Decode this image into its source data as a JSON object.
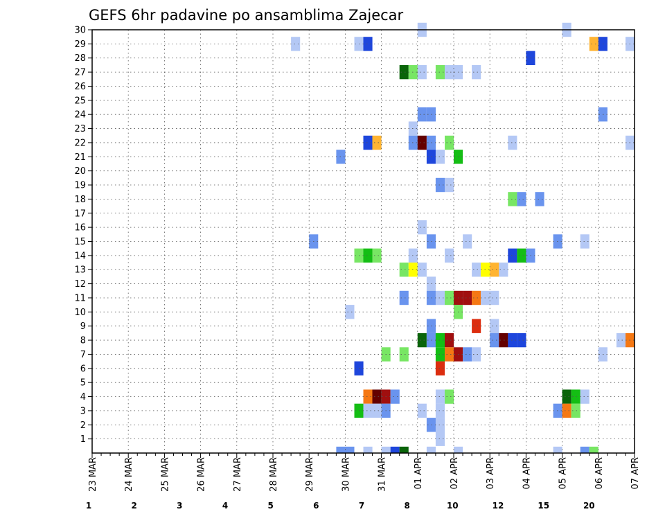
{
  "chart_data": {
    "type": "heatmap",
    "title": "GEFS 6hr padavine po ansamblima Zajecar",
    "x_tick_labels": [
      "23 MAR",
      "24 MAR",
      "25 MAR",
      "26 MAR",
      "27 MAR",
      "28 MAR",
      "29 MAR",
      "30 MAR",
      "31 MAR",
      "01 APR",
      "02 APR",
      "03 APR",
      "04 APR",
      "05 APR",
      "06 APR",
      "07 APR"
    ],
    "x_range": [
      "23 MAR 00Z",
      "07 APR 00Z"
    ],
    "x_step_hours": 6,
    "y_tick_labels": [
      "1",
      "2",
      "3",
      "4",
      "5",
      "6",
      "7",
      "8",
      "9",
      "10",
      "11",
      "12",
      "13",
      "14",
      "15",
      "16",
      "17",
      "18",
      "19",
      "20",
      "21",
      "22",
      "23",
      "24",
      "25",
      "26",
      "27",
      "28",
      "29",
      "30"
    ],
    "y_range": [
      0,
      30
    ],
    "grid": true,
    "legend": {
      "placement": "bottom",
      "labels": [
        "1",
        "2",
        "3",
        "4",
        "5",
        "6",
        "7",
        "8",
        "10",
        "12",
        "15",
        "20"
      ],
      "colors": [
        "#b4c8f5",
        "#6a94ee",
        "#1e46dc",
        "#78e664",
        "#14be14",
        "#0a640a",
        "#ffff00",
        "#ffb432",
        "#f57814",
        "#dc2d0f",
        "#a00f0f",
        "#640000"
      ]
    },
    "cells": [
      {
        "member": 30,
        "t": 36,
        "v": 1
      },
      {
        "member": 30,
        "t": 52,
        "v": 1
      },
      {
        "member": 29,
        "t": 22,
        "v": 1
      },
      {
        "member": 29,
        "t": 29,
        "v": 1
      },
      {
        "member": 29,
        "t": 30,
        "v": 3
      },
      {
        "member": 29,
        "t": 55,
        "v": 8
      },
      {
        "member": 29,
        "t": 56,
        "v": 3
      },
      {
        "member": 29,
        "t": 59,
        "v": 1
      },
      {
        "member": 28,
        "t": 48,
        "v": 3
      },
      {
        "member": 27,
        "t": 34,
        "v": 6
      },
      {
        "member": 27,
        "t": 35,
        "v": 4
      },
      {
        "member": 27,
        "t": 36,
        "v": 1
      },
      {
        "member": 27,
        "t": 38,
        "v": 4
      },
      {
        "member": 27,
        "t": 39,
        "v": 1
      },
      {
        "member": 27,
        "t": 40,
        "v": 1
      },
      {
        "member": 27,
        "t": 42,
        "v": 1
      },
      {
        "member": 24,
        "t": 36,
        "v": 2
      },
      {
        "member": 24,
        "t": 37,
        "v": 2
      },
      {
        "member": 24,
        "t": 56,
        "v": 2
      },
      {
        "member": 24,
        "t": 60,
        "v": 5
      },
      {
        "member": 23,
        "t": 35,
        "v": 1
      },
      {
        "member": 22,
        "t": 30,
        "v": 3
      },
      {
        "member": 22,
        "t": 31,
        "v": 8
      },
      {
        "member": 22,
        "t": 35,
        "v": 2
      },
      {
        "member": 22,
        "t": 36,
        "v": 20
      },
      {
        "member": 22,
        "t": 37,
        "v": 2
      },
      {
        "member": 22,
        "t": 39,
        "v": 4
      },
      {
        "member": 22,
        "t": 46,
        "v": 1
      },
      {
        "member": 22,
        "t": 59,
        "v": 1
      },
      {
        "member": 21,
        "t": 27,
        "v": 2
      },
      {
        "member": 21,
        "t": 37,
        "v": 3
      },
      {
        "member": 21,
        "t": 38,
        "v": 1
      },
      {
        "member": 21,
        "t": 40,
        "v": 5
      },
      {
        "member": 19,
        "t": 38,
        "v": 2
      },
      {
        "member": 19,
        "t": 39,
        "v": 1
      },
      {
        "member": 18,
        "t": 46,
        "v": 4
      },
      {
        "member": 18,
        "t": 47,
        "v": 2
      },
      {
        "member": 18,
        "t": 49,
        "v": 2
      },
      {
        "member": 16,
        "t": 36,
        "v": 1
      },
      {
        "member": 15,
        "t": 24,
        "v": 2
      },
      {
        "member": 15,
        "t": 37,
        "v": 2
      },
      {
        "member": 15,
        "t": 41,
        "v": 1
      },
      {
        "member": 15,
        "t": 51,
        "v": 2
      },
      {
        "member": 15,
        "t": 54,
        "v": 1
      },
      {
        "member": 14,
        "t": 29,
        "v": 4
      },
      {
        "member": 14,
        "t": 30,
        "v": 5
      },
      {
        "member": 14,
        "t": 31,
        "v": 4
      },
      {
        "member": 14,
        "t": 35,
        "v": 1
      },
      {
        "member": 14,
        "t": 39,
        "v": 1
      },
      {
        "member": 14,
        "t": 46,
        "v": 3
      },
      {
        "member": 14,
        "t": 47,
        "v": 5
      },
      {
        "member": 14,
        "t": 48,
        "v": 2
      },
      {
        "member": 13,
        "t": 34,
        "v": 4
      },
      {
        "member": 13,
        "t": 35,
        "v": 7
      },
      {
        "member": 13,
        "t": 36,
        "v": 1
      },
      {
        "member": 13,
        "t": 42,
        "v": 1
      },
      {
        "member": 13,
        "t": 43,
        "v": 7
      },
      {
        "member": 13,
        "t": 44,
        "v": 8
      },
      {
        "member": 13,
        "t": 45,
        "v": 1
      },
      {
        "member": 13,
        "t": 60,
        "v": 3
      },
      {
        "member": 12,
        "t": 37,
        "v": 1
      },
      {
        "member": 11,
        "t": 34,
        "v": 2
      },
      {
        "member": 11,
        "t": 37,
        "v": 2
      },
      {
        "member": 11,
        "t": 38,
        "v": 1
      },
      {
        "member": 11,
        "t": 39,
        "v": 4
      },
      {
        "member": 11,
        "t": 40,
        "v": 15
      },
      {
        "member": 11,
        "t": 41,
        "v": 15
      },
      {
        "member": 11,
        "t": 42,
        "v": 10
      },
      {
        "member": 11,
        "t": 43,
        "v": 1
      },
      {
        "member": 11,
        "t": 44,
        "v": 1
      },
      {
        "member": 10,
        "t": 28,
        "v": 1
      },
      {
        "member": 10,
        "t": 40,
        "v": 4
      },
      {
        "member": 9,
        "t": 37,
        "v": 2
      },
      {
        "member": 9,
        "t": 42,
        "v": 12
      },
      {
        "member": 9,
        "t": 44,
        "v": 1
      },
      {
        "member": 8,
        "t": 36,
        "v": 6
      },
      {
        "member": 8,
        "t": 37,
        "v": 2
      },
      {
        "member": 8,
        "t": 38,
        "v": 5
      },
      {
        "member": 8,
        "t": 39,
        "v": 15
      },
      {
        "member": 8,
        "t": 44,
        "v": 2
      },
      {
        "member": 8,
        "t": 45,
        "v": 20
      },
      {
        "member": 8,
        "t": 46,
        "v": 3
      },
      {
        "member": 8,
        "t": 47,
        "v": 3
      },
      {
        "member": 8,
        "t": 58,
        "v": 1
      },
      {
        "member": 8,
        "t": 59,
        "v": 10
      },
      {
        "member": 8,
        "t": 60,
        "v": 6
      },
      {
        "member": 7,
        "t": 32,
        "v": 4
      },
      {
        "member": 7,
        "t": 34,
        "v": 4
      },
      {
        "member": 7,
        "t": 38,
        "v": 5
      },
      {
        "member": 7,
        "t": 39,
        "v": 10
      },
      {
        "member": 7,
        "t": 40,
        "v": 15
      },
      {
        "member": 7,
        "t": 41,
        "v": 2
      },
      {
        "member": 7,
        "t": 42,
        "v": 1
      },
      {
        "member": 7,
        "t": 56,
        "v": 1
      },
      {
        "member": 6,
        "t": 29,
        "v": 3
      },
      {
        "member": 6,
        "t": 38,
        "v": 12
      },
      {
        "member": 4,
        "t": 30,
        "v": 10
      },
      {
        "member": 4,
        "t": 31,
        "v": 20
      },
      {
        "member": 4,
        "t": 32,
        "v": 15
      },
      {
        "member": 4,
        "t": 33,
        "v": 2
      },
      {
        "member": 4,
        "t": 38,
        "v": 1
      },
      {
        "member": 4,
        "t": 39,
        "v": 4
      },
      {
        "member": 4,
        "t": 52,
        "v": 6
      },
      {
        "member": 4,
        "t": 53,
        "v": 5
      },
      {
        "member": 4,
        "t": 54,
        "v": 1
      },
      {
        "member": 3,
        "t": 29,
        "v": 5
      },
      {
        "member": 3,
        "t": 30,
        "v": 1
      },
      {
        "member": 3,
        "t": 31,
        "v": 1
      },
      {
        "member": 3,
        "t": 32,
        "v": 2
      },
      {
        "member": 3,
        "t": 36,
        "v": 1
      },
      {
        "member": 3,
        "t": 38,
        "v": 1
      },
      {
        "member": 3,
        "t": 51,
        "v": 2
      },
      {
        "member": 3,
        "t": 52,
        "v": 10
      },
      {
        "member": 3,
        "t": 53,
        "v": 4
      },
      {
        "member": 2,
        "t": 37,
        "v": 2
      },
      {
        "member": 2,
        "t": 38,
        "v": 1
      },
      {
        "member": 1,
        "t": 38,
        "v": 1
      },
      {
        "member": 0,
        "t": 27,
        "v": 2
      },
      {
        "member": 0,
        "t": 28,
        "v": 2
      },
      {
        "member": 0,
        "t": 30,
        "v": 1
      },
      {
        "member": 0,
        "t": 32,
        "v": 1
      },
      {
        "member": 0,
        "t": 33,
        "v": 3
      },
      {
        "member": 0,
        "t": 34,
        "v": 6
      },
      {
        "member": 0,
        "t": 37,
        "v": 1
      },
      {
        "member": 0,
        "t": 40,
        "v": 1
      },
      {
        "member": 0,
        "t": 51,
        "v": 1
      },
      {
        "member": 0,
        "t": 54,
        "v": 2
      },
      {
        "member": 0,
        "t": 55,
        "v": 4
      }
    ]
  }
}
